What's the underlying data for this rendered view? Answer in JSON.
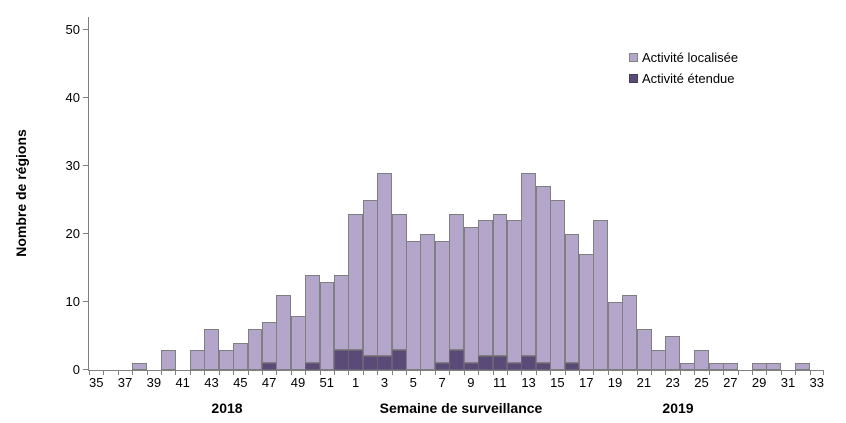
{
  "chart_data": {
    "type": "bar",
    "stacked": true,
    "title": "",
    "xlabel": "Semaine de surveillance",
    "ylabel": "Nombre de régions",
    "ylim": [
      0,
      50
    ],
    "y_ticks": [
      0,
      10,
      20,
      30,
      40,
      50
    ],
    "grid": false,
    "legend_position": "top-right",
    "year_labels": [
      {
        "text": "2018"
      },
      {
        "text": "2019"
      }
    ],
    "categories": [
      "35",
      "36",
      "37",
      "38",
      "39",
      "40",
      "41",
      "42",
      "43",
      "44",
      "45",
      "46",
      "47",
      "48",
      "49",
      "50",
      "51",
      "52",
      "1",
      "2",
      "3",
      "4",
      "5",
      "6",
      "7",
      "8",
      "9",
      "10",
      "11",
      "12",
      "13",
      "14",
      "15",
      "16",
      "17",
      "18",
      "19",
      "20",
      "21",
      "22",
      "23",
      "24",
      "25",
      "26",
      "27",
      "28",
      "29",
      "30",
      "31",
      "32",
      "33"
    ],
    "x_tick_labels": [
      "35",
      "37",
      "39",
      "41",
      "43",
      "45",
      "47",
      "49",
      "51",
      "1",
      "3",
      "5",
      "7",
      "9",
      "11",
      "13",
      "15",
      "17",
      "19",
      "21",
      "23",
      "25",
      "27",
      "29",
      "31",
      "33"
    ],
    "series": [
      {
        "name": "Activité localisée",
        "color": "#b3a6ca",
        "border": "#7f7f7f",
        "values": [
          0,
          0,
          0,
          1,
          0,
          3,
          0,
          3,
          6,
          3,
          4,
          6,
          6,
          11,
          8,
          13,
          13,
          11,
          20,
          23,
          27,
          20,
          19,
          20,
          18,
          20,
          20,
          20,
          21,
          21,
          27,
          26,
          25,
          19,
          17,
          22,
          10,
          11,
          6,
          3,
          5,
          1,
          3,
          1,
          1,
          0,
          1,
          1,
          0,
          1,
          0
        ]
      },
      {
        "name": "Activité étendue",
        "color": "#5a4a78",
        "border": "#6e6177",
        "values": [
          0,
          0,
          0,
          0,
          0,
          0,
          0,
          0,
          0,
          0,
          0,
          0,
          1,
          0,
          0,
          1,
          0,
          3,
          3,
          2,
          2,
          3,
          0,
          0,
          1,
          3,
          1,
          2,
          2,
          1,
          2,
          1,
          0,
          1,
          0,
          0,
          0,
          0,
          0,
          0,
          0,
          0,
          0,
          0,
          0,
          0,
          0,
          0,
          0,
          0,
          0
        ]
      }
    ]
  }
}
